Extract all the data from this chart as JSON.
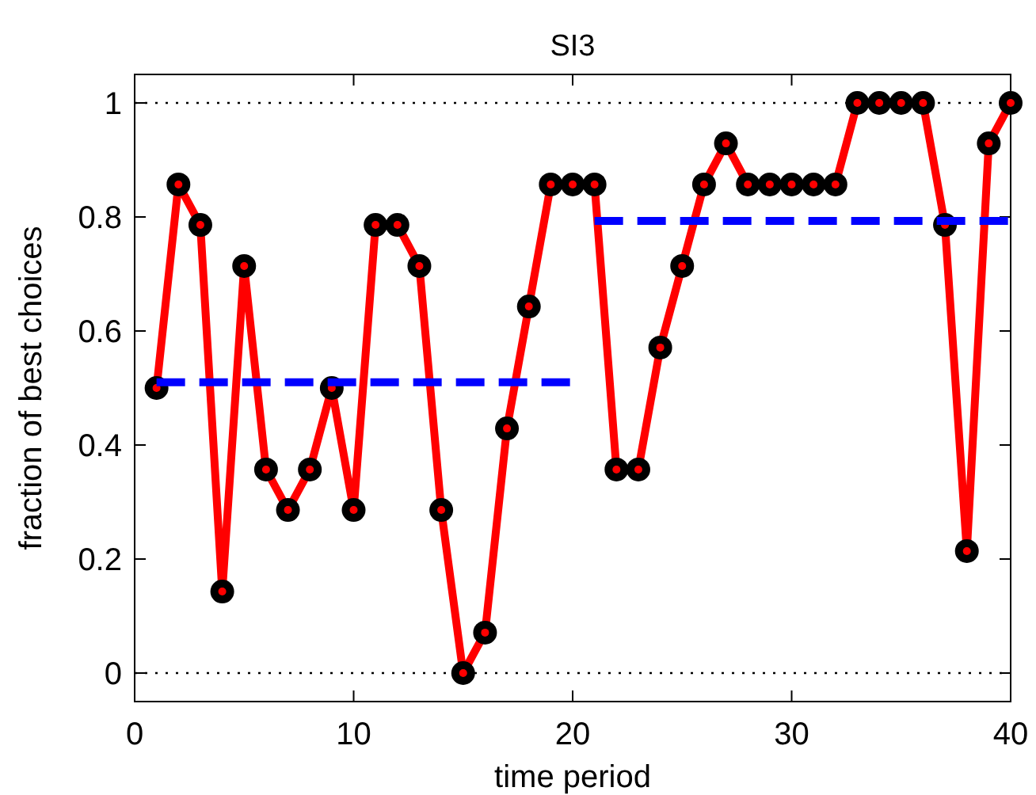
{
  "chart_data": {
    "type": "line",
    "title": "SI3",
    "xlabel": "time period",
    "ylabel": "fraction of best choices",
    "xlim": [
      0,
      40
    ],
    "xticks": [
      0,
      10,
      20,
      30,
      40
    ],
    "ylim": [
      -0.05,
      1.05
    ],
    "yticks": [
      0,
      0.2,
      0.4,
      0.6,
      0.8,
      1
    ],
    "marker": "circle",
    "line_style": "solid",
    "series": [
      {
        "color": "#ff0000",
        "x": [
          1,
          2,
          3,
          4,
          5,
          6,
          7,
          8,
          9,
          10,
          11,
          12,
          13,
          14,
          15,
          16,
          17,
          18,
          19,
          20,
          21,
          22,
          23,
          24,
          25,
          26,
          27,
          28,
          29,
          30,
          31,
          32,
          33,
          34,
          35,
          36,
          37,
          38,
          39,
          40
        ],
        "values": [
          0.5,
          0.857,
          0.786,
          0.143,
          0.714,
          0.357,
          0.286,
          0.357,
          0.5,
          0.286,
          0.786,
          0.786,
          0.714,
          0.286,
          0,
          0.071,
          0.429,
          0.643,
          0.857,
          0.857,
          0.857,
          0.357,
          0.357,
          0.571,
          0.714,
          0.857,
          0.929,
          0.857,
          0.857,
          0.857,
          0.857,
          0.857,
          1,
          1,
          1,
          1,
          0.786,
          0.214,
          0.929,
          1
        ]
      },
      {
        "color": "#0000ff",
        "marker": "none",
        "line_style": "dashed",
        "x": [
          1,
          20
        ],
        "values": [
          0.51,
          0.51
        ]
      },
      {
        "color": "#0000ff",
        "marker": "none",
        "line_style": "dashed",
        "x": [
          21,
          40
        ],
        "values": [
          0.793,
          0.793
        ]
      }
    ],
    "ref_lines": [
      {
        "axis": "y",
        "value": 0,
        "color": "#000000",
        "line_style": "dotted"
      },
      {
        "axis": "y",
        "value": 1,
        "color": "#000000",
        "line_style": "dotted"
      }
    ]
  }
}
